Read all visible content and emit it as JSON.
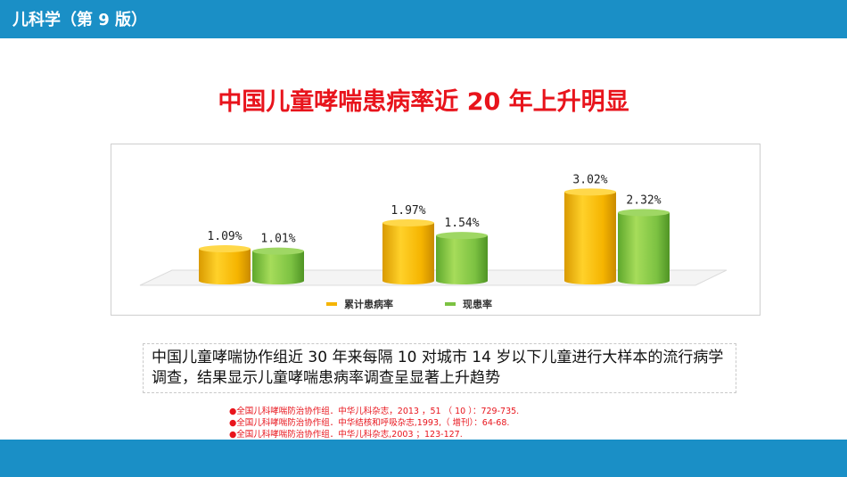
{
  "header": {
    "title": "儿科学（第 9 版）"
  },
  "slide": {
    "title": "中国儿童哮喘患病率近 20 年上升明显"
  },
  "description": "中国儿童哮喘协作组近 30 年来每隔 10 对城市 14 岁以下儿童进行大样本的流行病学调查，结果显示儿童哮喘患病率调查呈显著上升趋势",
  "references": [
    "●全国儿科哮喘防治协作组．中华儿科杂志，2013 ，51 （ 10 ）：729-735.",
    "●全国儿科哮喘防治协作组．中华结核和呼吸杂志,1993,（ 增刊）：64-68.",
    "●全国儿科哮喘防治协作组．中华儿科杂志,2003 ；123-127."
  ],
  "colors": {
    "header_bar": "#1a8fc6",
    "title_red": "#e8141c",
    "series_1": "#f5b400",
    "series_2": "#7cc242"
  },
  "chart_data": {
    "type": "bar",
    "categories": [
      "",
      "",
      ""
    ],
    "series": [
      {
        "name": "累计患病率",
        "values": [
          1.09,
          1.97,
          3.02
        ],
        "labels": [
          "1.09%",
          "1.97%",
          "3.02%"
        ]
      },
      {
        "name": "现患率",
        "values": [
          1.01,
          1.54,
          2.32
        ],
        "labels": [
          "1.01%",
          "1.54%",
          "2.32%"
        ]
      }
    ],
    "legend": "bottom",
    "grid": false
  }
}
